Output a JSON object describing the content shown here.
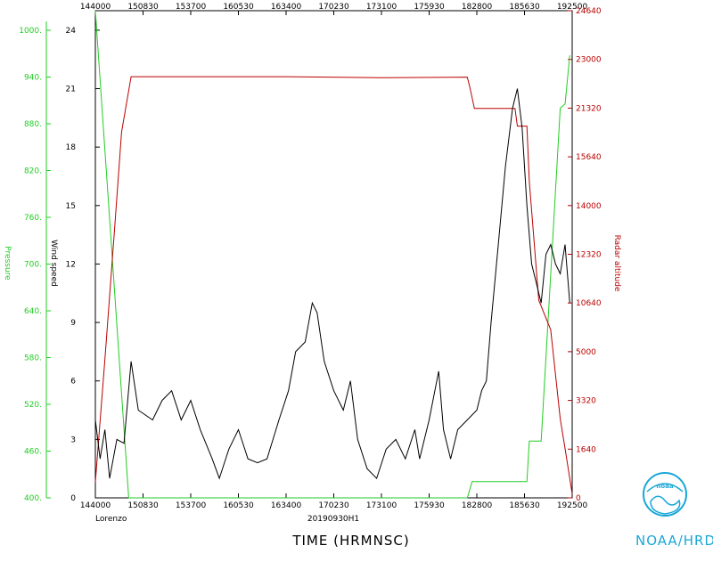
{
  "chart_data": {
    "type": "line",
    "storm": "Lorenzo",
    "flight_id": "20190930H1",
    "xlabel": "TIME (HRMNSC)",
    "agency": "NOAA/HRD",
    "logo_text": "noaa",
    "x_ticks": [
      "144000",
      "150830",
      "153700",
      "160530",
      "163400",
      "170230",
      "173100",
      "175930",
      "182800",
      "185630",
      "192500"
    ],
    "axes": {
      "pressure": {
        "label": "Pressure",
        "color": "#22cc22",
        "ylim": [
          400,
          1000
        ],
        "ticks": [
          "400.",
          "460.",
          "520.",
          "580.",
          "640.",
          "700.",
          "760.",
          "820.",
          "880.",
          "940.",
          "1000."
        ]
      },
      "wind": {
        "label": "Wind speed",
        "color": "#000000",
        "ylim": [
          0,
          25
        ],
        "ticks": [
          "0",
          "3",
          "6",
          "9",
          "12",
          "15",
          "18",
          "21",
          "24"
        ]
      },
      "altitude": {
        "label": "Radar altitude",
        "color": "#bb0000",
        "ylim": [
          0,
          24640
        ],
        "ticks": [
          "0",
          "1640",
          "3320",
          "5000",
          "10640",
          "12320",
          "14000",
          "15640",
          "21320",
          "23000",
          "24640"
        ]
      }
    },
    "series": [
      {
        "name": "Pressure",
        "axis": "pressure",
        "color": "#22cc22",
        "points": [
          [
            0,
            1000
          ],
          [
            0.07,
            400
          ],
          [
            0.78,
            400
          ],
          [
            0.79,
            420
          ],
          [
            0.905,
            420
          ],
          [
            0.91,
            470
          ],
          [
            0.935,
            470
          ],
          [
            0.975,
            880
          ],
          [
            0.985,
            885
          ],
          [
            0.995,
            945
          ]
        ]
      },
      {
        "name": "Radar altitude",
        "axis": "altitude",
        "color": "#bb0000",
        "points": [
          [
            0,
            800
          ],
          [
            0.02,
            7000
          ],
          [
            0.04,
            13500
          ],
          [
            0.055,
            18500
          ],
          [
            0.075,
            21300
          ],
          [
            0.2,
            21300
          ],
          [
            0.4,
            21300
          ],
          [
            0.6,
            21250
          ],
          [
            0.78,
            21280
          ],
          [
            0.785,
            20800
          ],
          [
            0.795,
            19700
          ],
          [
            0.88,
            19700
          ],
          [
            0.885,
            18800
          ],
          [
            0.905,
            18800
          ],
          [
            0.91,
            16000
          ],
          [
            0.93,
            10000
          ],
          [
            0.955,
            8500
          ],
          [
            0.975,
            4000
          ],
          [
            0.985,
            2500
          ],
          [
            1.0,
            200
          ]
        ]
      },
      {
        "name": "Wind speed",
        "axis": "wind",
        "color": "#000000",
        "points": [
          [
            0,
            4
          ],
          [
            0.01,
            2
          ],
          [
            0.02,
            3.5
          ],
          [
            0.03,
            1
          ],
          [
            0.045,
            3
          ],
          [
            0.06,
            2.8
          ],
          [
            0.075,
            7
          ],
          [
            0.09,
            4.5
          ],
          [
            0.12,
            4
          ],
          [
            0.14,
            5
          ],
          [
            0.16,
            5.5
          ],
          [
            0.18,
            4
          ],
          [
            0.2,
            5
          ],
          [
            0.22,
            3.5
          ],
          [
            0.245,
            2
          ],
          [
            0.26,
            1
          ],
          [
            0.28,
            2.5
          ],
          [
            0.3,
            3.5
          ],
          [
            0.32,
            2
          ],
          [
            0.34,
            1.8
          ],
          [
            0.36,
            2
          ],
          [
            0.385,
            4
          ],
          [
            0.405,
            5.5
          ],
          [
            0.42,
            7.5
          ],
          [
            0.44,
            8
          ],
          [
            0.455,
            10
          ],
          [
            0.465,
            9.5
          ],
          [
            0.48,
            7
          ],
          [
            0.5,
            5.5
          ],
          [
            0.52,
            4.5
          ],
          [
            0.535,
            6
          ],
          [
            0.55,
            3
          ],
          [
            0.57,
            1.5
          ],
          [
            0.59,
            1
          ],
          [
            0.61,
            2.5
          ],
          [
            0.63,
            3
          ],
          [
            0.65,
            2
          ],
          [
            0.67,
            3.5
          ],
          [
            0.68,
            2
          ],
          [
            0.7,
            4
          ],
          [
            0.72,
            6.5
          ],
          [
            0.73,
            3.5
          ],
          [
            0.745,
            2
          ],
          [
            0.76,
            3.5
          ],
          [
            0.78,
            4
          ],
          [
            0.8,
            4.5
          ],
          [
            0.81,
            5.5
          ],
          [
            0.82,
            6
          ],
          [
            0.83,
            9
          ],
          [
            0.845,
            13
          ],
          [
            0.86,
            17
          ],
          [
            0.875,
            20
          ],
          [
            0.885,
            21
          ],
          [
            0.895,
            19
          ],
          [
            0.905,
            15
          ],
          [
            0.915,
            12
          ],
          [
            0.925,
            11
          ],
          [
            0.935,
            10
          ],
          [
            0.945,
            12.5
          ],
          [
            0.955,
            13
          ],
          [
            0.965,
            12
          ],
          [
            0.975,
            11.5
          ],
          [
            0.985,
            13
          ],
          [
            0.995,
            10
          ]
        ]
      }
    ]
  }
}
